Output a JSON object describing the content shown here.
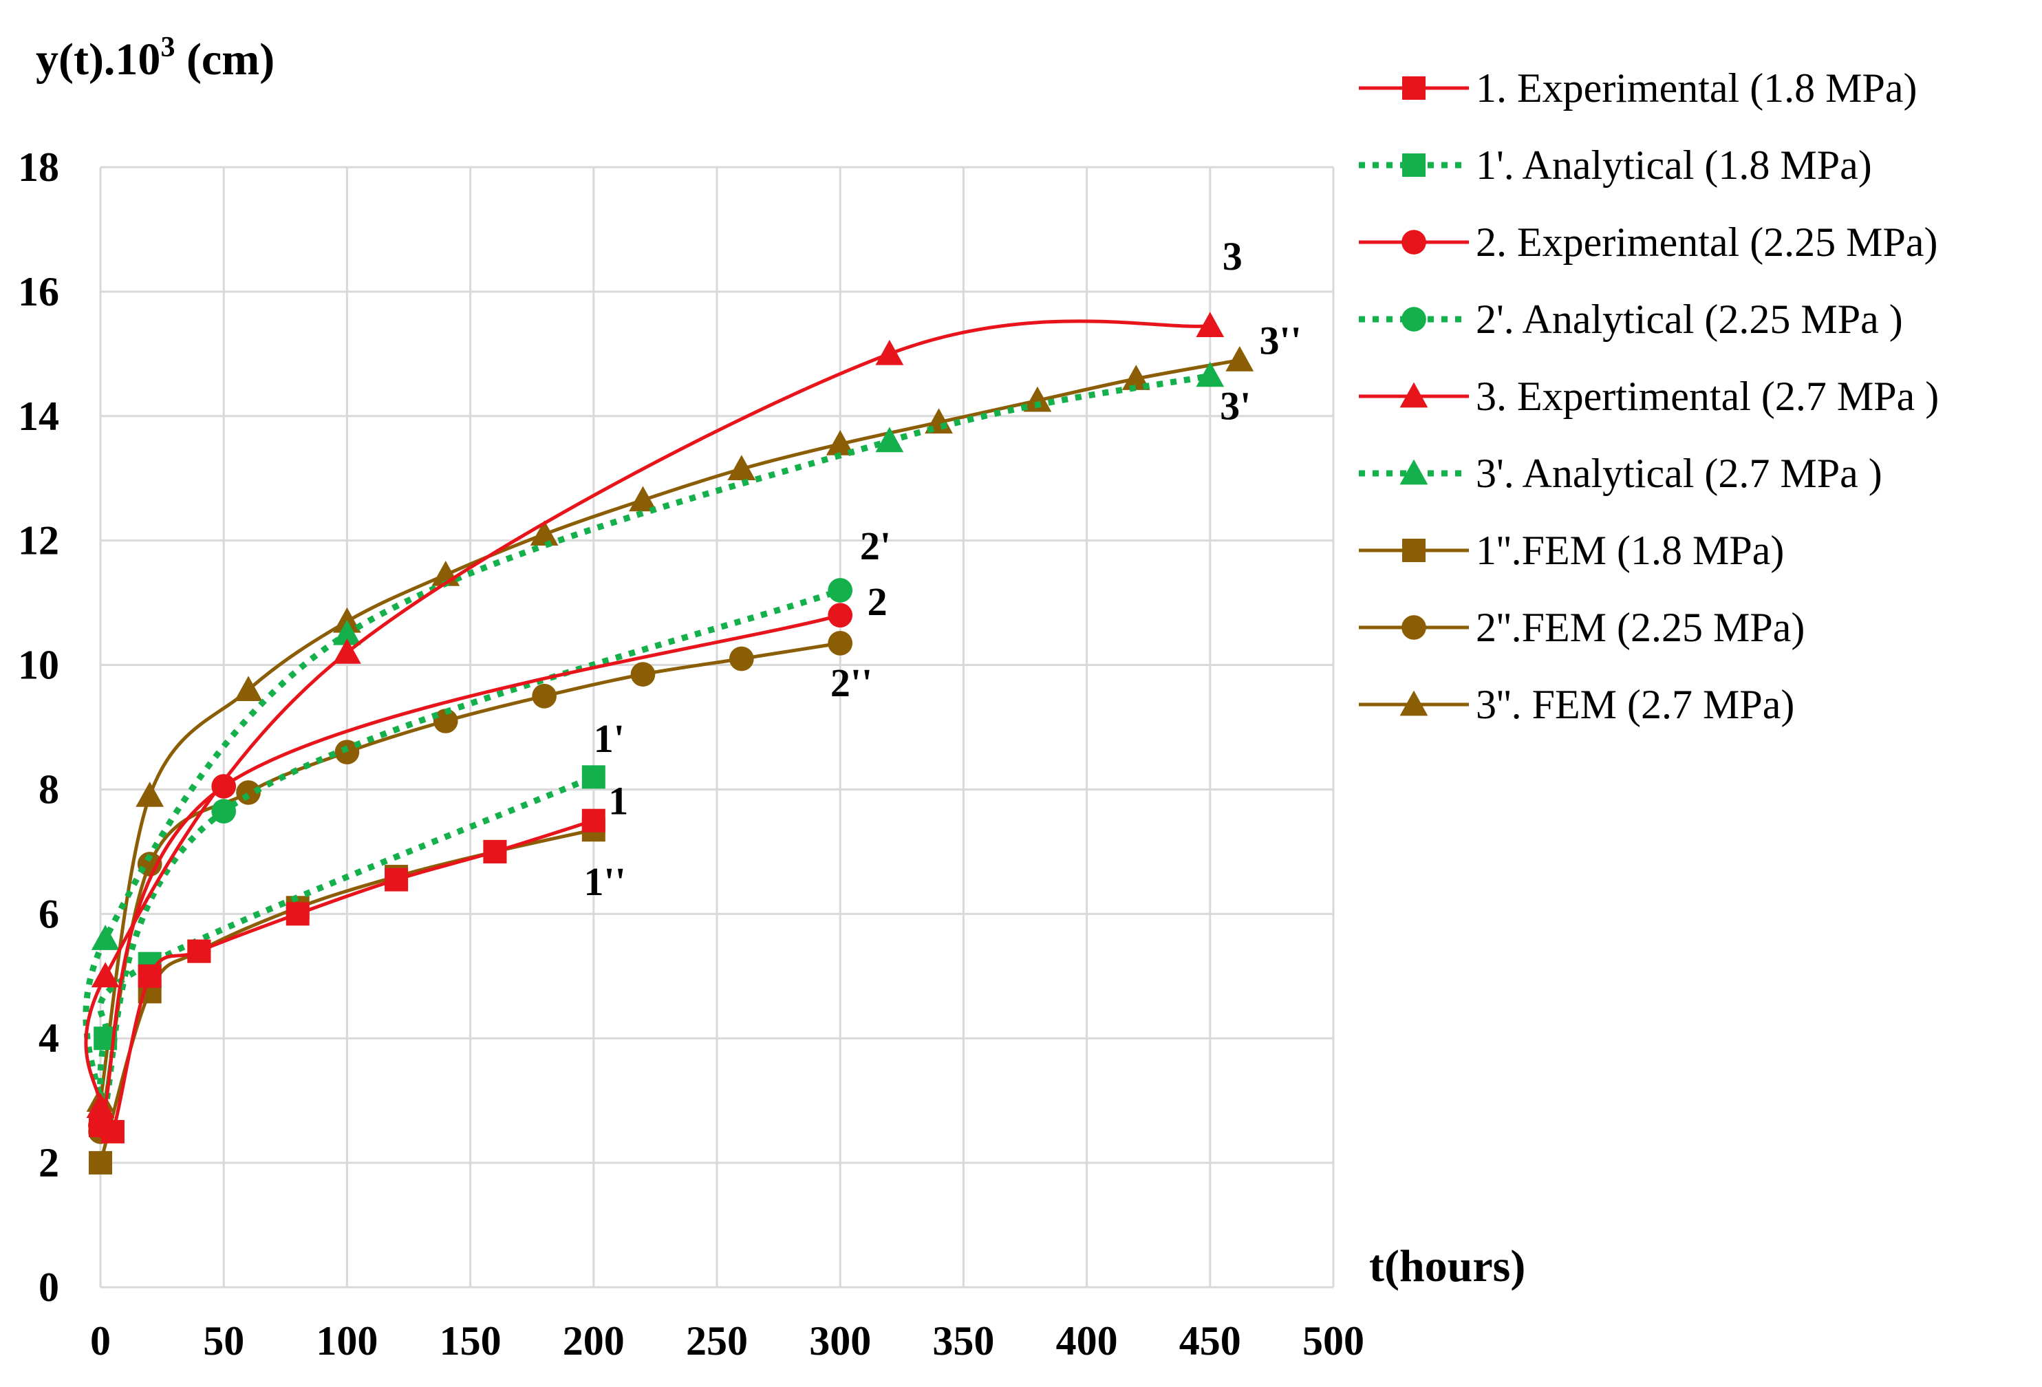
{
  "chart_data": {
    "type": "line",
    "title": "",
    "ylabel": "y(t).10",
    "ylabel_sup": "3",
    "ylabel_unit": " (cm)",
    "xlabel": "t(hours)",
    "xlim": [
      0,
      500
    ],
    "ylim": [
      0,
      18
    ],
    "xticks": [
      0,
      50,
      100,
      150,
      200,
      250,
      300,
      350,
      400,
      450,
      500
    ],
    "yticks": [
      0,
      2,
      4,
      6,
      8,
      10,
      12,
      14,
      16,
      18
    ],
    "grid": true,
    "legend_position": "right",
    "colors": {
      "red": "#e8141b",
      "green": "#14b04c",
      "brown": "#8b5e06"
    },
    "series": [
      {
        "name": "1. Experimental (1.8 MPa)",
        "color": "#e8141b",
        "style": "solid",
        "marker": "square",
        "x": [
          0,
          5,
          20,
          40,
          80,
          120,
          160,
          200
        ],
        "y": [
          2.6,
          2.5,
          5.0,
          5.4,
          6.0,
          6.55,
          7.0,
          7.5
        ]
      },
      {
        "name": "1'. Analytical (1.8 MPa)",
        "color": "#14b04c",
        "style": "dotted",
        "marker": "square",
        "x": [
          0,
          2,
          20,
          200
        ],
        "y": [
          2.6,
          4.0,
          5.2,
          8.2
        ]
      },
      {
        "name": "2. Experimental (2.25 MPa)",
        "color": "#e8141b",
        "style": "solid",
        "marker": "circle",
        "x": [
          0,
          50,
          300
        ],
        "y": [
          2.6,
          8.05,
          10.8
        ]
      },
      {
        "name": "2'. Analytical (2.25 MPa )",
        "color": "#14b04c",
        "style": "dotted",
        "marker": "circle",
        "x": [
          0,
          50,
          300
        ],
        "y": [
          2.6,
          7.65,
          11.2
        ]
      },
      {
        "name": "3. Expertimental (2.7 MPa )",
        "color": "#e8141b",
        "style": "solid",
        "marker": "triangle",
        "x": [
          0,
          2,
          100,
          320,
          450
        ],
        "y": [
          2.9,
          5.0,
          10.2,
          15.0,
          15.45
        ]
      },
      {
        "name": "3'. Analytical (2.7 MPa )",
        "color": "#14b04c",
        "style": "dotted",
        "marker": "triangle",
        "x": [
          0,
          2,
          100,
          320,
          450
        ],
        "y": [
          2.9,
          5.6,
          10.5,
          13.6,
          14.65
        ]
      },
      {
        "name": "1''.FEM (1.8 MPa)",
        "color": "#8b5e06",
        "style": "solid",
        "marker": "square",
        "x": [
          0,
          20,
          40,
          80,
          120,
          160,
          200
        ],
        "y": [
          2.0,
          4.75,
          5.4,
          6.1,
          6.6,
          7.0,
          7.35
        ]
      },
      {
        "name": "2''.FEM (2.25 MPa)",
        "color": "#8b5e06",
        "style": "solid",
        "marker": "circle",
        "x": [
          0,
          20,
          60,
          100,
          140,
          180,
          220,
          260,
          300
        ],
        "y": [
          2.5,
          6.8,
          7.95,
          8.6,
          9.1,
          9.5,
          9.85,
          10.1,
          10.35
        ]
      },
      {
        "name": "3''. FEM (2.7 MPa)",
        "color": "#8b5e06",
        "style": "solid",
        "marker": "triangle",
        "x": [
          0,
          20,
          60,
          100,
          140,
          180,
          220,
          260,
          300,
          340,
          380,
          420,
          462
        ],
        "y": [
          3.0,
          7.9,
          9.6,
          10.7,
          11.45,
          12.1,
          12.65,
          13.15,
          13.55,
          13.9,
          14.25,
          14.6,
          14.9
        ]
      }
    ],
    "annotations": [
      {
        "text": "1",
        "x": 206,
        "y": 7.6
      },
      {
        "text": "1'",
        "x": 200,
        "y": 8.6
      },
      {
        "text": "1''",
        "x": 196,
        "y": 6.3
      },
      {
        "text": "2",
        "x": 311,
        "y": 10.8
      },
      {
        "text": "2'",
        "x": 308,
        "y": 11.7
      },
      {
        "text": "2''",
        "x": 296,
        "y": 9.5
      },
      {
        "text": "3",
        "x": 455,
        "y": 16.35
      },
      {
        "text": "3'",
        "x": 454,
        "y": 13.95
      },
      {
        "text": "3''",
        "x": 470,
        "y": 15.0
      }
    ]
  }
}
